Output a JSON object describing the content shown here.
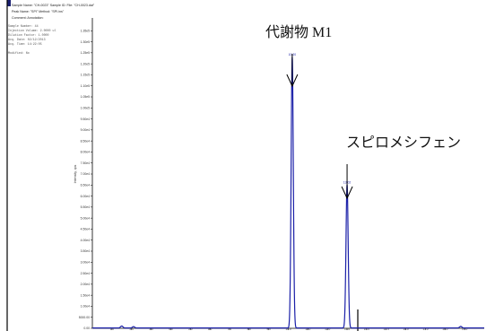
{
  "header": {
    "lines": [
      "Sample Name: \"CH-0023\"   Sample ID:   File: \"CH-0023.dat\"",
      "Peak Name: \"SPI\"   Method: \"SPI.ins\"",
      "Comment:   Annotation:"
    ]
  },
  "meta_rows": [
    "Sample Number:   44",
    "Injection Volume:  2.0000   ul",
    "Dilution Factor:   1.0000",
    "Acq. Date:   02/12/2013",
    "Acq. Time:   14:22:05",
    "Modified:   No"
  ],
  "annotations": {
    "peak1_label": "代謝物 M1",
    "peak2_label": "スピロメシフェン"
  },
  "chart_data": {
    "type": "line",
    "title": "",
    "xlabel": "",
    "ylabel": "Intensity, cps",
    "xlim": [
      0,
      20
    ],
    "ylim": [
      0,
      140000
    ],
    "grid": false,
    "y_ticks": [
      0,
      5000,
      10000,
      15000,
      20000,
      25000,
      30000,
      35000,
      40000,
      45000,
      50000,
      55000,
      60000,
      65000,
      70000,
      75000,
      80000,
      85000,
      90000,
      95000,
      100000,
      105000,
      110000,
      115000,
      120000,
      125000,
      130000,
      135000
    ],
    "y_tick_labels": [
      "0.00",
      "5000.00",
      "1.00e4",
      "1.50e4",
      "2.00e4",
      "2.50e4",
      "3.00e4",
      "3.50e4",
      "4.00e4",
      "4.50e4",
      "5.00e4",
      "5.50e4",
      "6.00e4",
      "6.50e4",
      "7.00e4",
      "7.50e4",
      "8.00e4",
      "8.50e4",
      "9.00e4",
      "9.50e4",
      "1.00e5",
      "1.05e5",
      "1.10e5",
      "1.15e5",
      "1.20e5",
      "1.25e5",
      "1.30e5",
      "1.35e5"
    ],
    "x_ticks": [
      1,
      2,
      3,
      4,
      5,
      6,
      7,
      8,
      9,
      10,
      11,
      12,
      13,
      14,
      15,
      16,
      17,
      18,
      19
    ],
    "x_tick_labels": [
      "1.0",
      "2.0",
      "3.0",
      "4.0",
      "5.0",
      "6.0",
      "7.0",
      "8.0",
      "9.0",
      "10.0",
      "11.0",
      "12.0",
      "13.0",
      "14.0",
      "15.0",
      "16.0",
      "17.0",
      "18.0",
      "19.0"
    ],
    "series": [
      {
        "color": "#1a1fa8",
        "peaks": [
          {
            "rt": 10.2,
            "height": 123000,
            "label": "10.20"
          },
          {
            "rt": 13.0,
            "height": 65000,
            "label": "13.02"
          }
        ],
        "noise_bumps": [
          {
            "rt": 1.5,
            "height": 900
          },
          {
            "rt": 2.1,
            "height": 600
          },
          {
            "rt": 18.8,
            "height": 700
          }
        ]
      }
    ]
  }
}
